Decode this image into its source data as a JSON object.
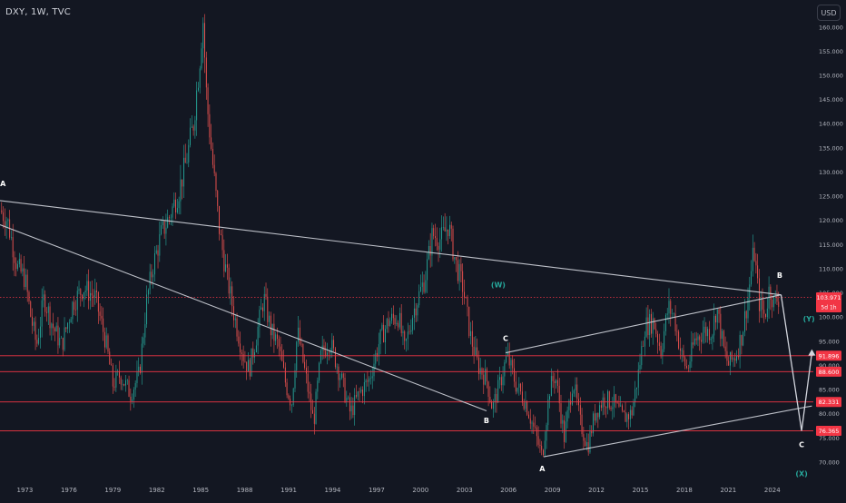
{
  "header": {
    "symbol_line": "DXY, 1W, TVC",
    "currency_button": "USD"
  },
  "colors": {
    "background": "#131722",
    "axis_text": "#b2b5be",
    "up": "#26a69a",
    "down": "#ef5350",
    "level_line": "#f23645",
    "trend_line": "#d1d4dc",
    "wave_label": "#ffffff",
    "wave_label_teal": "#26a69a",
    "price_tag_bg": "#f23645"
  },
  "chart_data": {
    "type": "candlestick",
    "series_name": "DXY",
    "timeframe": "1W",
    "source": "TVC",
    "x_tick_labels": [
      "1973",
      "1976",
      "1979",
      "1982",
      "1985",
      "1988",
      "1991",
      "1994",
      "1997",
      "2000",
      "2003",
      "2006",
      "2009",
      "2012",
      "2015",
      "2018",
      "2021",
      "2024"
    ],
    "y_tick_values": [
      70,
      75,
      80,
      85,
      90,
      95,
      100,
      105,
      110,
      115,
      120,
      125,
      130,
      135,
      140,
      145,
      150,
      155,
      160
    ],
    "y_tick_labels": [
      "70.000",
      "75.000",
      "80.000",
      "85.000",
      "90.000",
      "95.000",
      "100.000",
      "105.000",
      "110.000",
      "115.000",
      "120.000",
      "125.000",
      "130.000",
      "135.000",
      "140.000",
      "145.000",
      "150.000",
      "155.000",
      "160.000"
    ],
    "ylim": [
      66.5,
      165.5
    ],
    "xlim": [
      1971.3,
      2026.8
    ],
    "approx_closes": [
      {
        "t": 1971.3,
        "v": 122
      },
      {
        "t": 1971.8,
        "v": 120
      },
      {
        "t": 1972.5,
        "v": 110
      },
      {
        "t": 1973.0,
        "v": 108
      },
      {
        "t": 1973.4,
        "v": 100
      },
      {
        "t": 1973.8,
        "v": 94
      },
      {
        "t": 1974.3,
        "v": 104
      },
      {
        "t": 1974.9,
        "v": 98
      },
      {
        "t": 1975.5,
        "v": 94
      },
      {
        "t": 1976.3,
        "v": 103
      },
      {
        "t": 1977.0,
        "v": 106
      },
      {
        "t": 1977.8,
        "v": 104
      },
      {
        "t": 1978.5,
        "v": 95
      },
      {
        "t": 1979.0,
        "v": 86
      },
      {
        "t": 1979.5,
        "v": 88
      },
      {
        "t": 1980.2,
        "v": 84
      },
      {
        "t": 1980.8,
        "v": 88
      },
      {
        "t": 1981.3,
        "v": 103
      },
      {
        "t": 1981.7,
        "v": 110
      },
      {
        "t": 1982.3,
        "v": 117
      },
      {
        "t": 1982.9,
        "v": 121
      },
      {
        "t": 1983.5,
        "v": 126
      },
      {
        "t": 1984.0,
        "v": 132
      },
      {
        "t": 1984.5,
        "v": 140
      },
      {
        "t": 1984.9,
        "v": 152
      },
      {
        "t": 1985.15,
        "v": 162
      },
      {
        "t": 1985.4,
        "v": 145
      },
      {
        "t": 1985.8,
        "v": 132
      },
      {
        "t": 1986.3,
        "v": 117
      },
      {
        "t": 1986.8,
        "v": 108
      },
      {
        "t": 1987.3,
        "v": 100
      },
      {
        "t": 1987.9,
        "v": 92
      },
      {
        "t": 1988.3,
        "v": 89
      },
      {
        "t": 1988.8,
        "v": 96
      },
      {
        "t": 1989.3,
        "v": 104
      },
      {
        "t": 1989.8,
        "v": 97
      },
      {
        "t": 1990.3,
        "v": 94
      },
      {
        "t": 1990.8,
        "v": 86
      },
      {
        "t": 1991.2,
        "v": 82
      },
      {
        "t": 1991.6,
        "v": 97
      },
      {
        "t": 1992.2,
        "v": 87
      },
      {
        "t": 1992.7,
        "v": 78
      },
      {
        "t": 1993.2,
        "v": 92
      },
      {
        "t": 1993.8,
        "v": 95
      },
      {
        "t": 1994.5,
        "v": 88
      },
      {
        "t": 1995.2,
        "v": 80
      },
      {
        "t": 1995.8,
        "v": 84
      },
      {
        "t": 1996.5,
        "v": 87
      },
      {
        "t": 1997.2,
        "v": 95
      },
      {
        "t": 1997.8,
        "v": 99
      },
      {
        "t": 1998.5,
        "v": 100
      },
      {
        "t": 1998.9,
        "v": 93
      },
      {
        "t": 1999.5,
        "v": 101
      },
      {
        "t": 2000.3,
        "v": 108
      },
      {
        "t": 2000.8,
        "v": 117
      },
      {
        "t": 2001.4,
        "v": 116
      },
      {
        "t": 2001.9,
        "v": 119
      },
      {
        "t": 2002.4,
        "v": 111
      },
      {
        "t": 2002.9,
        "v": 106
      },
      {
        "t": 2003.4,
        "v": 96
      },
      {
        "t": 2003.9,
        "v": 90
      },
      {
        "t": 2004.5,
        "v": 87
      },
      {
        "t": 2004.9,
        "v": 81
      },
      {
        "t": 2005.4,
        "v": 86
      },
      {
        "t": 2005.9,
        "v": 92
      },
      {
        "t": 2006.5,
        "v": 86
      },
      {
        "t": 2007.2,
        "v": 82
      },
      {
        "t": 2007.8,
        "v": 76
      },
      {
        "t": 2008.3,
        "v": 71
      },
      {
        "t": 2008.8,
        "v": 85
      },
      {
        "t": 2009.2,
        "v": 88
      },
      {
        "t": 2009.8,
        "v": 75
      },
      {
        "t": 2010.4,
        "v": 87
      },
      {
        "t": 2010.9,
        "v": 78
      },
      {
        "t": 2011.4,
        "v": 73
      },
      {
        "t": 2011.9,
        "v": 80
      },
      {
        "t": 2012.5,
        "v": 83
      },
      {
        "t": 2013.2,
        "v": 82
      },
      {
        "t": 2013.8,
        "v": 79
      },
      {
        "t": 2014.4,
        "v": 80
      },
      {
        "t": 2014.9,
        "v": 89
      },
      {
        "t": 2015.3,
        "v": 98
      },
      {
        "t": 2015.9,
        "v": 99
      },
      {
        "t": 2016.4,
        "v": 93
      },
      {
        "t": 2016.9,
        "v": 102
      },
      {
        "t": 2017.3,
        "v": 100
      },
      {
        "t": 2017.8,
        "v": 92
      },
      {
        "t": 2018.2,
        "v": 89
      },
      {
        "t": 2018.7,
        "v": 95
      },
      {
        "t": 2019.3,
        "v": 97
      },
      {
        "t": 2019.9,
        "v": 97
      },
      {
        "t": 2020.2,
        "v": 102
      },
      {
        "t": 2020.7,
        "v": 93
      },
      {
        "t": 2021.0,
        "v": 90
      },
      {
        "t": 2021.5,
        "v": 92
      },
      {
        "t": 2021.9,
        "v": 96
      },
      {
        "t": 2022.3,
        "v": 103
      },
      {
        "t": 2022.75,
        "v": 114
      },
      {
        "t": 2023.1,
        "v": 103
      },
      {
        "t": 2023.5,
        "v": 100
      },
      {
        "t": 2023.8,
        "v": 106
      },
      {
        "t": 2024.1,
        "v": 103
      },
      {
        "t": 2024.5,
        "v": 104
      }
    ],
    "horizontal_levels": [
      {
        "value": 91.896,
        "label": "91.896"
      },
      {
        "value": 88.6,
        "label": "88.600"
      },
      {
        "value": 82.331,
        "label": "82.331"
      },
      {
        "value": 76.365,
        "label": "76.365"
      }
    ],
    "current_price": {
      "value": 103.971,
      "label": "103.971",
      "countdown": "5d 1h"
    },
    "trend_lines": [
      {
        "from": [
          1971.3,
          124
        ],
        "to": [
          2024.6,
          104.5
        ]
      },
      {
        "from": [
          1971.3,
          119
        ],
        "to": [
          2004.5,
          80.5
        ]
      },
      {
        "from": [
          2005.8,
          92.5
        ],
        "to": [
          2024.6,
          104.5
        ]
      },
      {
        "from": [
          2008.4,
          71.0
        ],
        "to": [
          2026.7,
          81.5
        ]
      }
    ],
    "projection_path": [
      [
        2024.6,
        104.5
      ],
      [
        2026.0,
        76.365
      ],
      [
        2026.7,
        92.5
      ]
    ],
    "wave_labels": [
      {
        "text": "A",
        "t": 1971.5,
        "v": 127,
        "color": "white"
      },
      {
        "text": "B",
        "t": 2004.5,
        "v": 78,
        "color": "white"
      },
      {
        "text": "C",
        "t": 2005.8,
        "v": 95,
        "color": "white"
      },
      {
        "text": "A",
        "t": 2008.3,
        "v": 68,
        "color": "white"
      },
      {
        "text": "B",
        "t": 2024.5,
        "v": 108,
        "color": "white"
      },
      {
        "text": "C",
        "t": 2026.0,
        "v": 73,
        "color": "white"
      },
      {
        "text": "(W)",
        "t": 2005.3,
        "v": 106,
        "color": "teal"
      },
      {
        "text": "(Y)",
        "t": 2026.5,
        "v": 99,
        "color": "teal"
      },
      {
        "text": "(X)",
        "t": 2026.0,
        "v": 67,
        "color": "teal"
      }
    ]
  }
}
